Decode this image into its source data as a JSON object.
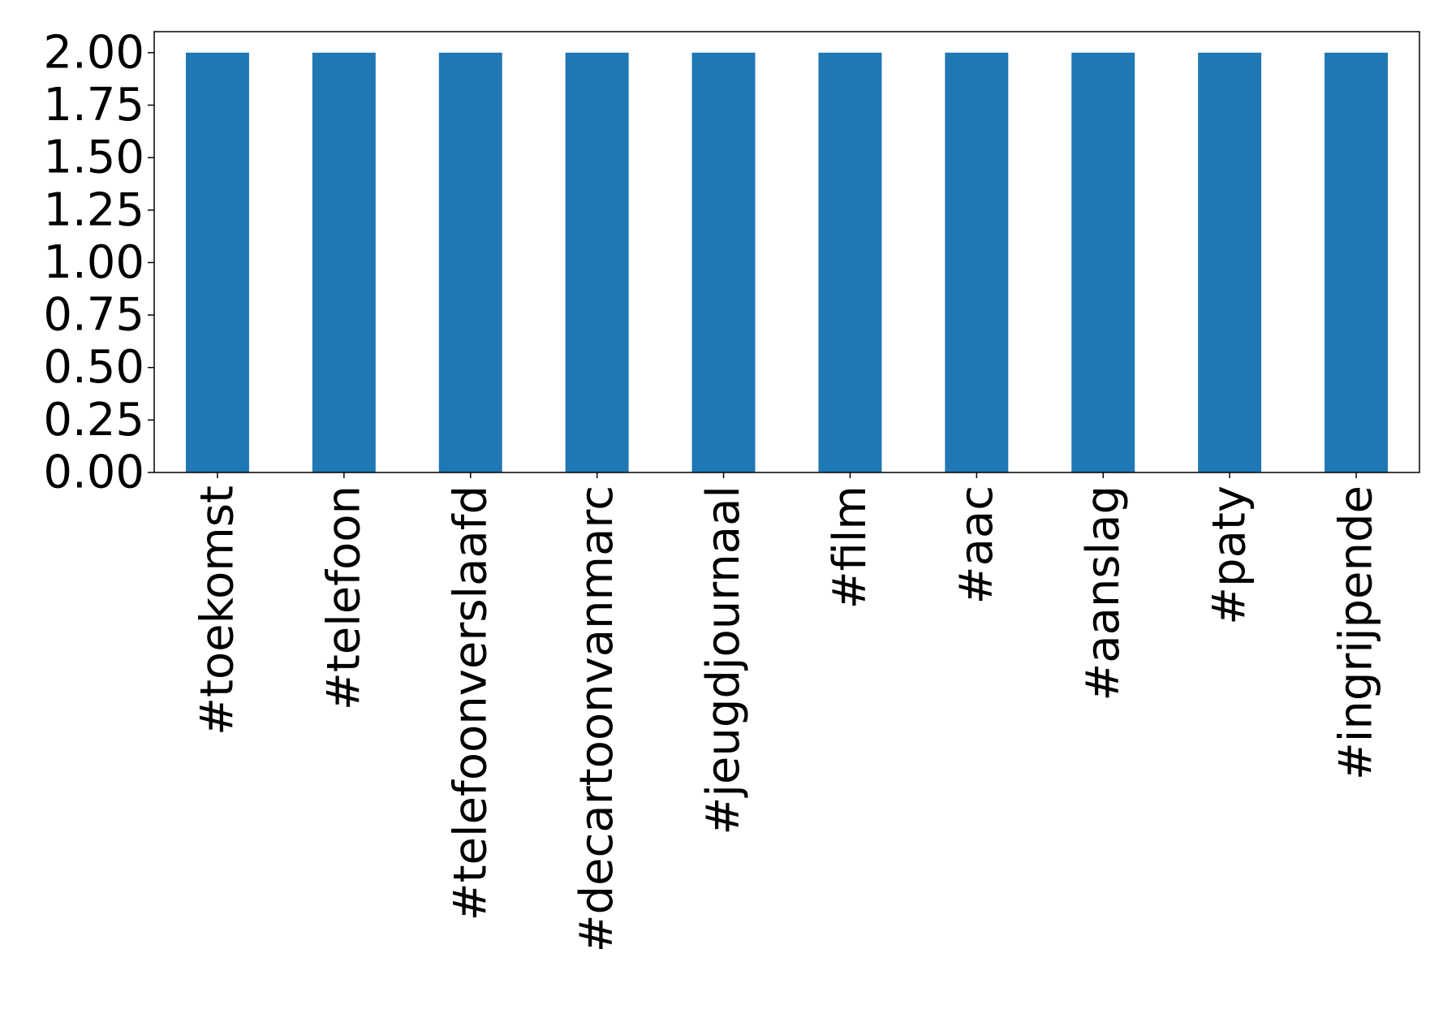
{
  "chart_data": {
    "type": "bar",
    "categories": [
      "#toekomst",
      "#telefoon",
      "#telefoonverslaafd",
      "#decartoonvanmarc",
      "#jeugdjournaal",
      "#film",
      "#aac",
      "#aanslag",
      "#paty",
      "#ingrijpende"
    ],
    "values": [
      2,
      2,
      2,
      2,
      2,
      2,
      2,
      2,
      2,
      2
    ],
    "title": "",
    "xlabel": "",
    "ylabel": "",
    "ylim": [
      0,
      2.1
    ],
    "yticks": [
      "0.00",
      "0.25",
      "0.50",
      "0.75",
      "1.00",
      "1.25",
      "1.50",
      "1.75",
      "2.00"
    ],
    "grid": false,
    "legend": "none",
    "colors": {
      "bar": "#1f77b4",
      "axis": "#000000",
      "background": "#ffffff"
    }
  }
}
